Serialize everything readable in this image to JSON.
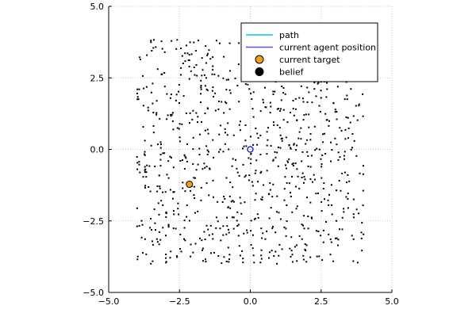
{
  "chart_data": {
    "type": "scatter",
    "title": "",
    "xlabel": "",
    "ylabel": "",
    "xlim": [
      -5,
      5
    ],
    "ylim": [
      -5,
      5
    ],
    "xticks": [
      -5.0,
      -2.5,
      0.0,
      2.5,
      5.0
    ],
    "yticks": [
      -5.0,
      -2.5,
      0.0,
      2.5,
      5.0
    ],
    "xtick_labels": [
      "−5.0",
      "−2.5",
      "0.0",
      "2.5",
      "5.0"
    ],
    "ytick_labels": [
      "−5.0",
      "−2.5",
      "0.0",
      "2.5",
      "5.0"
    ],
    "grid": true,
    "legend_position": "top-right",
    "legend": [
      {
        "label": "path",
        "kind": "line",
        "color": "#00c8d8"
      },
      {
        "label": "current agent position",
        "kind": "line",
        "color": "#5555ee"
      },
      {
        "label": "current target",
        "kind": "marker",
        "color": "#f0a21c"
      },
      {
        "label": "belief",
        "kind": "marker",
        "color": "#000000"
      }
    ],
    "series": {
      "current_agent_position": {
        "x": 0.0,
        "y": 0.0,
        "color": "#2a2ad8"
      },
      "current_target": {
        "x": -2.15,
        "y": -1.22,
        "color": "#f0a21c"
      },
      "belief": {
        "color": "#000000",
        "count": 900,
        "x_range": [
          -4.0,
          4.0
        ],
        "y_range": [
          -4.0,
          3.85
        ],
        "seed": 7
      }
    }
  }
}
